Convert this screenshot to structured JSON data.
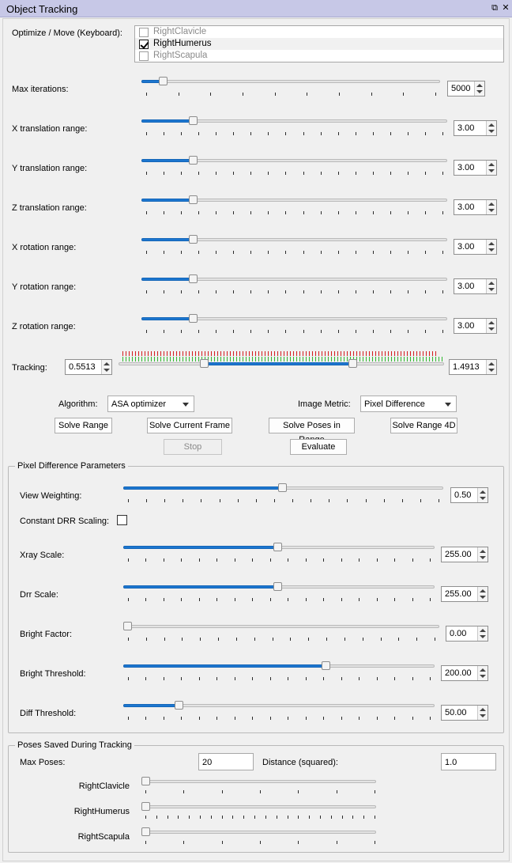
{
  "window": {
    "title": "Object Tracking"
  },
  "optimize": {
    "label": "Optimize / Move (Keyboard):",
    "items": [
      {
        "label": "RightClavicle",
        "checked": false,
        "enabled": false
      },
      {
        "label": "RightHumerus",
        "checked": true,
        "enabled": true
      },
      {
        "label": "RightScapula",
        "checked": false,
        "enabled": false
      }
    ]
  },
  "params": {
    "max_iterations": {
      "label": "Max iterations:",
      "value": "5000",
      "fraction": 0.06
    },
    "x_translation": {
      "label": "X translation range:",
      "value": "3.00",
      "fraction": 0.16
    },
    "y_translation": {
      "label": "Y translation range:",
      "value": "3.00",
      "fraction": 0.16
    },
    "z_translation": {
      "label": "Z translation range:",
      "value": "3.00",
      "fraction": 0.16
    },
    "x_rotation": {
      "label": "X rotation range:",
      "value": "3.00",
      "fraction": 0.16
    },
    "y_rotation": {
      "label": "Y rotation range:",
      "value": "3.00",
      "fraction": 0.16
    },
    "z_rotation": {
      "label": "Z rotation range:",
      "value": "3.00",
      "fraction": 0.16
    }
  },
  "tracking": {
    "label": "Tracking:",
    "low": "0.5513",
    "high": "1.4913"
  },
  "algorithm": {
    "label": "Algorithm:",
    "value": "ASA optimizer"
  },
  "image_metric": {
    "label": "Image Metric:",
    "value": "Pixel Difference"
  },
  "buttons": {
    "solve_range": "Solve Range",
    "solve_current_frame": "Solve Current Frame",
    "solve_poses_in_range": "Solve Poses in Range",
    "solve_range_4d": "Solve Range 4D",
    "stop": "Stop",
    "evaluate": "Evaluate"
  },
  "pixel_diff": {
    "title": "Pixel Difference Parameters",
    "view_weighting": {
      "label": "View Weighting:",
      "value": "0.50",
      "fraction": 0.5
    },
    "constant_drr": {
      "label": "Constant DRR Scaling:",
      "checked": false
    },
    "xray_scale": {
      "label": "Xray Scale:",
      "value": "255.00",
      "fraction": 0.5
    },
    "drr_scale": {
      "label": "Drr Scale:",
      "value": "255.00",
      "fraction": 0.5
    },
    "bright_factor": {
      "label": "Bright Factor:",
      "value": "0.00",
      "fraction": 0.0
    },
    "bright_threshold": {
      "label": "Bright Threshold:",
      "value": "200.00",
      "fraction": 0.66
    },
    "diff_threshold": {
      "label": "Diff Threshold:",
      "value": "50.00",
      "fraction": 0.17
    }
  },
  "poses": {
    "title": "Poses Saved During Tracking",
    "max_poses_label": "Max Poses:",
    "max_poses_value": "20",
    "distance_label": "Distance (squared):",
    "distance_value": "1.0",
    "bodies": [
      {
        "label": "RightClavicle"
      },
      {
        "label": "RightHumerus"
      },
      {
        "label": "RightScapula"
      }
    ]
  }
}
